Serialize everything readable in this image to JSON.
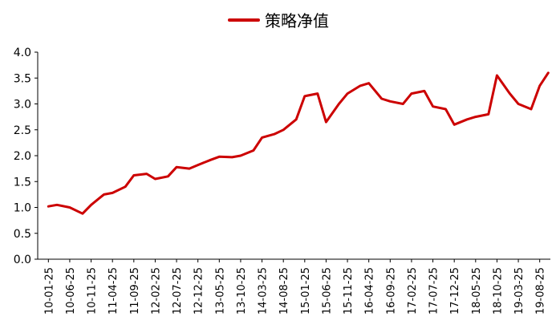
{
  "chart_data": {
    "type": "line",
    "title": "",
    "xlabel": "",
    "ylabel": "",
    "ylim": [
      0,
      4
    ],
    "yticks": [
      "0.0",
      "0.5",
      "1.0",
      "1.5",
      "2.0",
      "2.5",
      "3.0",
      "3.5",
      "4.0"
    ],
    "grid": false,
    "legend_placement": "top-center",
    "x_tick_labels": [
      "10-01-25",
      "10-06-25",
      "10-11-25",
      "11-04-25",
      "11-09-25",
      "12-02-25",
      "12-07-25",
      "12-12-25",
      "13-05-25",
      "13-10-25",
      "14-03-25",
      "14-08-25",
      "15-01-25",
      "15-06-25",
      "15-11-25",
      "16-04-25",
      "16-09-25",
      "17-02-25",
      "17-07-25",
      "17-12-25",
      "18-05-25",
      "18-10-25",
      "19-03-25",
      "19-08-25"
    ],
    "series": [
      {
        "name": "策略净值",
        "color": "#cc0000",
        "x": [
          "10-01-25",
          "10-03-25",
          "10-06-25",
          "10-09-25",
          "10-11-25",
          "11-02-25",
          "11-04-25",
          "11-07-25",
          "11-09-25",
          "11-12-25",
          "12-02-25",
          "12-05-25",
          "12-07-25",
          "12-10-25",
          "12-12-25",
          "13-03-25",
          "13-05-25",
          "13-08-25",
          "13-10-25",
          "14-01-25",
          "14-03-25",
          "14-06-25",
          "14-08-25",
          "14-11-25",
          "15-01-25",
          "15-04-25",
          "15-06-25",
          "15-09-25",
          "15-11-25",
          "16-02-25",
          "16-04-25",
          "16-07-25",
          "16-09-25",
          "16-12-25",
          "17-02-25",
          "17-05-25",
          "17-07-25",
          "17-10-25",
          "17-12-25",
          "18-03-25",
          "18-05-25",
          "18-08-25",
          "18-10-25",
          "19-01-25",
          "19-03-25",
          "19-06-25",
          "19-08-25",
          "19-10-25"
        ],
        "values": [
          1.02,
          1.05,
          1.0,
          0.88,
          1.05,
          1.25,
          1.28,
          1.4,
          1.62,
          1.65,
          1.55,
          1.6,
          1.78,
          1.75,
          1.82,
          1.92,
          1.98,
          1.97,
          2.0,
          2.1,
          2.35,
          2.42,
          2.5,
          2.7,
          3.15,
          3.2,
          2.65,
          3.0,
          3.2,
          3.35,
          3.4,
          3.1,
          3.05,
          3.0,
          3.2,
          3.25,
          2.95,
          2.9,
          2.6,
          2.7,
          2.75,
          2.8,
          3.55,
          3.2,
          3.0,
          2.9,
          3.35,
          3.6
        ]
      }
    ]
  }
}
